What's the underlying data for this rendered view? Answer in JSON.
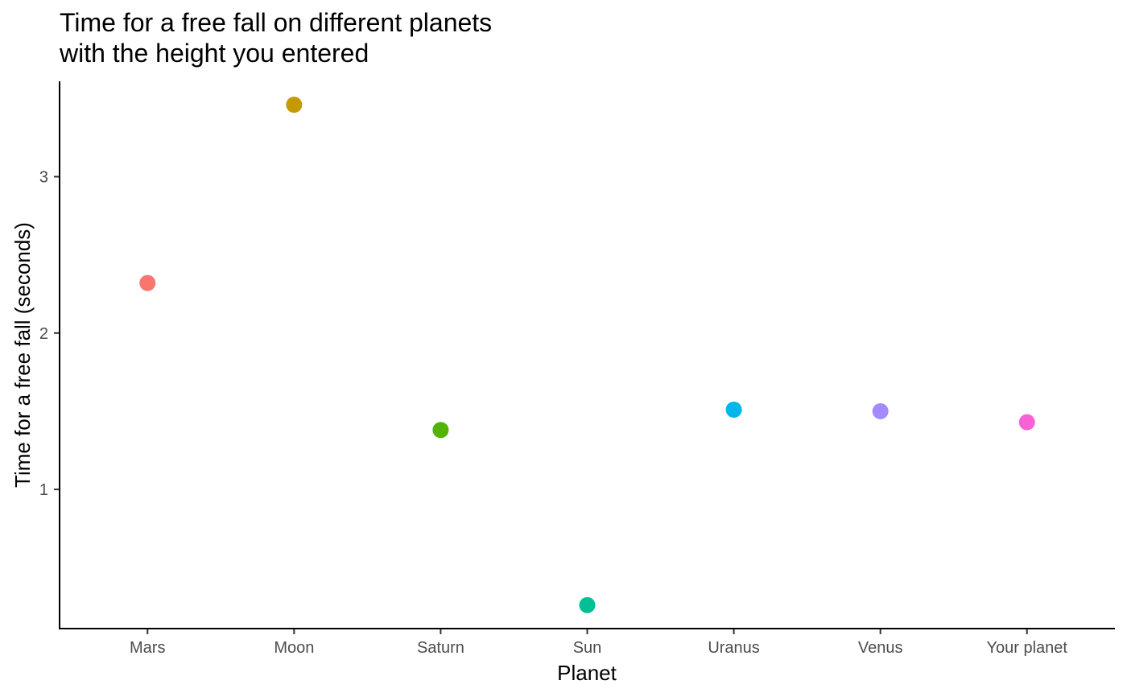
{
  "chart_data": {
    "type": "scatter",
    "title_lines": [
      "Time for a free fall on different planets",
      "with the height you entered"
    ],
    "xlabel": "Planet",
    "ylabel": "Time for a free fall (seconds)",
    "categories": [
      "Mars",
      "Moon",
      "Saturn",
      "Sun",
      "Uranus",
      "Venus",
      "Your planet"
    ],
    "values": [
      2.32,
      3.46,
      1.38,
      0.26,
      1.51,
      1.5,
      1.43
    ],
    "colors": [
      "#F8766D",
      "#C49A00",
      "#53B400",
      "#00C094",
      "#00B6EB",
      "#A58AFF",
      "#FB61D7"
    ],
    "yticks": [
      1,
      2,
      3
    ],
    "ylim": [
      0.11,
      3.61
    ],
    "grid": false,
    "legend": "none"
  }
}
